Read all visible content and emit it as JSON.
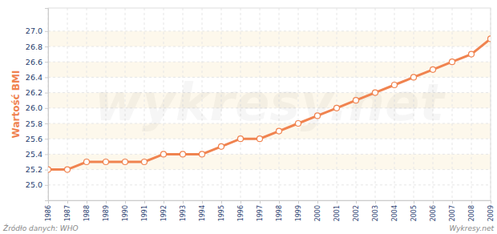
{
  "chart_data": {
    "type": "line",
    "y_label": "Wartość BMI",
    "annotations": [
      "Źródło danych: WHO",
      "Wykresy.net",
      "wykresy.net"
    ],
    "x": [
      1986,
      1987,
      1988,
      1989,
      1990,
      1991,
      1992,
      1993,
      1994,
      1995,
      1996,
      1997,
      1998,
      1999,
      2000,
      2001,
      2002,
      2003,
      2004,
      2005,
      2006,
      2007,
      2008,
      2009
    ],
    "values": [
      25.2,
      25.2,
      25.3,
      25.3,
      25.3,
      25.3,
      25.4,
      25.4,
      25.4,
      25.5,
      25.6,
      25.6,
      25.7,
      25.8,
      25.9,
      26.0,
      26.1,
      26.2,
      26.3,
      26.4,
      26.5,
      26.6,
      26.7,
      26.9
    ],
    "color": "#f0834f",
    "marker": "circle",
    "xlim": [
      1986,
      2009
    ],
    "xticks": [
      1986,
      1987,
      1988,
      1989,
      1990,
      1991,
      1992,
      1993,
      1994,
      1995,
      1996,
      1997,
      1998,
      1999,
      2000,
      2001,
      2002,
      2003,
      2004,
      2005,
      2006,
      2007,
      2008,
      2009
    ],
    "ylim": [
      24.8,
      27.3
    ],
    "yticks": [
      {
        "value": 25,
        "label": "25.0"
      },
      25.2,
      25.4,
      25.6,
      25.8,
      {
        "value": 26,
        "label": "26.0"
      },
      26.2,
      26.4,
      26.6,
      26.8,
      {
        "value": 27,
        "label": "27.0"
      }
    ],
    "grid": true
  }
}
